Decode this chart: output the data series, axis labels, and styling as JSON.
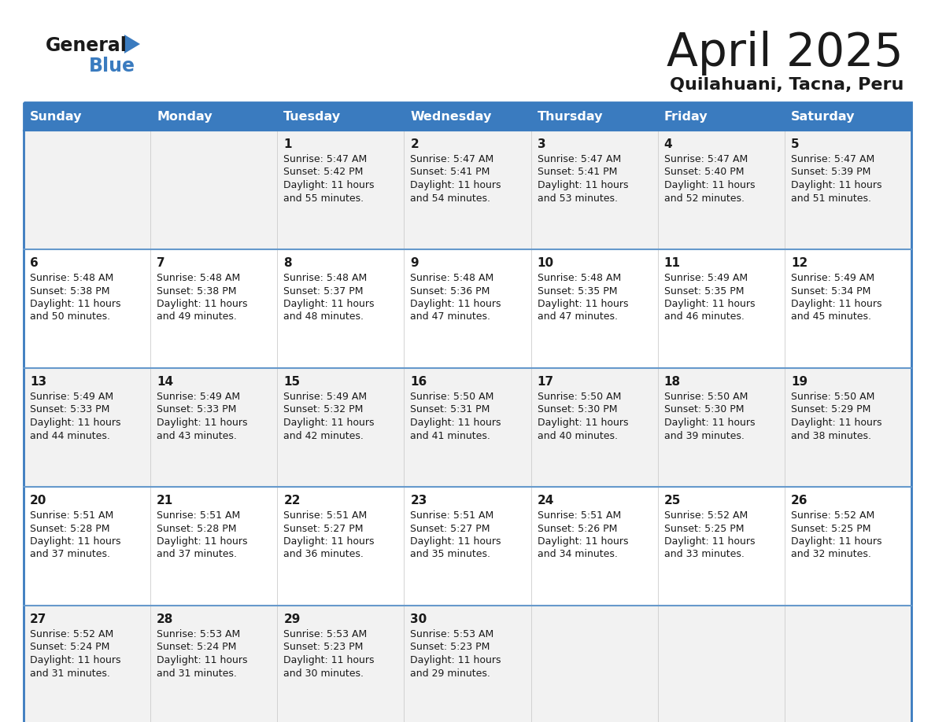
{
  "title": "April 2025",
  "subtitle": "Quilahuani, Tacna, Peru",
  "header_color": "#3a7bbf",
  "header_text_color": "#ffffff",
  "day_names": [
    "Sunday",
    "Monday",
    "Tuesday",
    "Wednesday",
    "Thursday",
    "Friday",
    "Saturday"
  ],
  "row_colors": [
    "#f2f2f2",
    "#ffffff",
    "#f2f2f2",
    "#ffffff",
    "#f2f2f2"
  ],
  "border_color": "#3a7bbf",
  "row_border_color": "#6699cc",
  "text_color": "#1a1a1a",
  "calendar": [
    [
      {
        "day": "",
        "sunrise": "",
        "sunset": "",
        "daylight_hours": "",
        "daylight_minutes": ""
      },
      {
        "day": "",
        "sunrise": "",
        "sunset": "",
        "daylight_hours": "",
        "daylight_minutes": ""
      },
      {
        "day": "1",
        "sunrise": "5:47 AM",
        "sunset": "5:42 PM",
        "daylight_hours": "11",
        "daylight_minutes": "55"
      },
      {
        "day": "2",
        "sunrise": "5:47 AM",
        "sunset": "5:41 PM",
        "daylight_hours": "11",
        "daylight_minutes": "54"
      },
      {
        "day": "3",
        "sunrise": "5:47 AM",
        "sunset": "5:41 PM",
        "daylight_hours": "11",
        "daylight_minutes": "53"
      },
      {
        "day": "4",
        "sunrise": "5:47 AM",
        "sunset": "5:40 PM",
        "daylight_hours": "11",
        "daylight_minutes": "52"
      },
      {
        "day": "5",
        "sunrise": "5:47 AM",
        "sunset": "5:39 PM",
        "daylight_hours": "11",
        "daylight_minutes": "51"
      }
    ],
    [
      {
        "day": "6",
        "sunrise": "5:48 AM",
        "sunset": "5:38 PM",
        "daylight_hours": "11",
        "daylight_minutes": "50"
      },
      {
        "day": "7",
        "sunrise": "5:48 AM",
        "sunset": "5:38 PM",
        "daylight_hours": "11",
        "daylight_minutes": "49"
      },
      {
        "day": "8",
        "sunrise": "5:48 AM",
        "sunset": "5:37 PM",
        "daylight_hours": "11",
        "daylight_minutes": "48"
      },
      {
        "day": "9",
        "sunrise": "5:48 AM",
        "sunset": "5:36 PM",
        "daylight_hours": "11",
        "daylight_minutes": "47"
      },
      {
        "day": "10",
        "sunrise": "5:48 AM",
        "sunset": "5:35 PM",
        "daylight_hours": "11",
        "daylight_minutes": "47"
      },
      {
        "day": "11",
        "sunrise": "5:49 AM",
        "sunset": "5:35 PM",
        "daylight_hours": "11",
        "daylight_minutes": "46"
      },
      {
        "day": "12",
        "sunrise": "5:49 AM",
        "sunset": "5:34 PM",
        "daylight_hours": "11",
        "daylight_minutes": "45"
      }
    ],
    [
      {
        "day": "13",
        "sunrise": "5:49 AM",
        "sunset": "5:33 PM",
        "daylight_hours": "11",
        "daylight_minutes": "44"
      },
      {
        "day": "14",
        "sunrise": "5:49 AM",
        "sunset": "5:33 PM",
        "daylight_hours": "11",
        "daylight_minutes": "43"
      },
      {
        "day": "15",
        "sunrise": "5:49 AM",
        "sunset": "5:32 PM",
        "daylight_hours": "11",
        "daylight_minutes": "42"
      },
      {
        "day": "16",
        "sunrise": "5:50 AM",
        "sunset": "5:31 PM",
        "daylight_hours": "11",
        "daylight_minutes": "41"
      },
      {
        "day": "17",
        "sunrise": "5:50 AM",
        "sunset": "5:30 PM",
        "daylight_hours": "11",
        "daylight_minutes": "40"
      },
      {
        "day": "18",
        "sunrise": "5:50 AM",
        "sunset": "5:30 PM",
        "daylight_hours": "11",
        "daylight_minutes": "39"
      },
      {
        "day": "19",
        "sunrise": "5:50 AM",
        "sunset": "5:29 PM",
        "daylight_hours": "11",
        "daylight_minutes": "38"
      }
    ],
    [
      {
        "day": "20",
        "sunrise": "5:51 AM",
        "sunset": "5:28 PM",
        "daylight_hours": "11",
        "daylight_minutes": "37"
      },
      {
        "day": "21",
        "sunrise": "5:51 AM",
        "sunset": "5:28 PM",
        "daylight_hours": "11",
        "daylight_minutes": "37"
      },
      {
        "day": "22",
        "sunrise": "5:51 AM",
        "sunset": "5:27 PM",
        "daylight_hours": "11",
        "daylight_minutes": "36"
      },
      {
        "day": "23",
        "sunrise": "5:51 AM",
        "sunset": "5:27 PM",
        "daylight_hours": "11",
        "daylight_minutes": "35"
      },
      {
        "day": "24",
        "sunrise": "5:51 AM",
        "sunset": "5:26 PM",
        "daylight_hours": "11",
        "daylight_minutes": "34"
      },
      {
        "day": "25",
        "sunrise": "5:52 AM",
        "sunset": "5:25 PM",
        "daylight_hours": "11",
        "daylight_minutes": "33"
      },
      {
        "day": "26",
        "sunrise": "5:52 AM",
        "sunset": "5:25 PM",
        "daylight_hours": "11",
        "daylight_minutes": "32"
      }
    ],
    [
      {
        "day": "27",
        "sunrise": "5:52 AM",
        "sunset": "5:24 PM",
        "daylight_hours": "11",
        "daylight_minutes": "31"
      },
      {
        "day": "28",
        "sunrise": "5:53 AM",
        "sunset": "5:24 PM",
        "daylight_hours": "11",
        "daylight_minutes": "31"
      },
      {
        "day": "29",
        "sunrise": "5:53 AM",
        "sunset": "5:23 PM",
        "daylight_hours": "11",
        "daylight_minutes": "30"
      },
      {
        "day": "30",
        "sunrise": "5:53 AM",
        "sunset": "5:23 PM",
        "daylight_hours": "11",
        "daylight_minutes": "29"
      },
      {
        "day": "",
        "sunrise": "",
        "sunset": "",
        "daylight_hours": "",
        "daylight_minutes": ""
      },
      {
        "day": "",
        "sunrise": "",
        "sunset": "",
        "daylight_hours": "",
        "daylight_minutes": ""
      },
      {
        "day": "",
        "sunrise": "",
        "sunset": "",
        "daylight_hours": "",
        "daylight_minutes": ""
      }
    ]
  ],
  "logo_triangle_color": "#3a7bbf",
  "logo_general_color": "#1a1a1a",
  "logo_blue_color": "#3a7bbf"
}
